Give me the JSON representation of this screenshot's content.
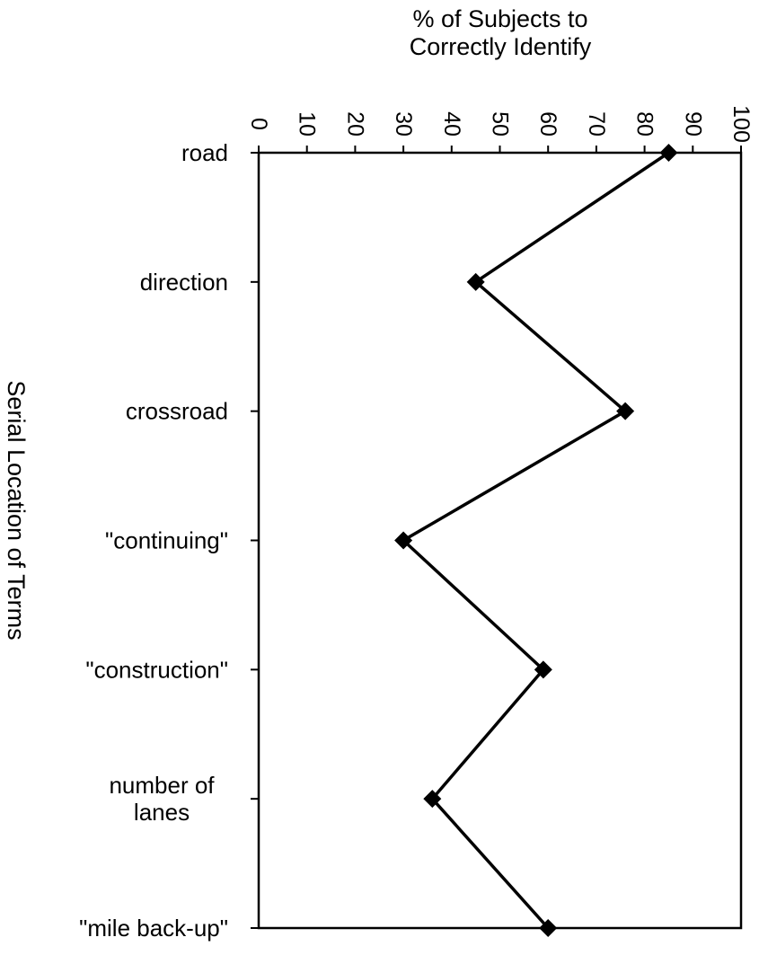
{
  "chart_data": {
    "type": "line",
    "orientation": "horizontal",
    "title": "",
    "xlabel": "% of Subjects to Correctly Identify",
    "xlabel_lines": [
      "% of Subjects to",
      "Correctly Identify"
    ],
    "ylabel": "Serial Location of Terms",
    "xlim": [
      0,
      100
    ],
    "x_ticks": [
      "0",
      "10",
      "20",
      "30",
      "40",
      "50",
      "60",
      "70",
      "80",
      "90",
      "100"
    ],
    "categories": [
      [
        "road"
      ],
      [
        "direction"
      ],
      [
        "crossroad"
      ],
      [
        "\"continuing\""
      ],
      [
        "\"construction\""
      ],
      [
        "number of",
        "lanes"
      ],
      [
        "\"mile back-up\""
      ]
    ],
    "series": [
      {
        "values": [
          85,
          45,
          76,
          30,
          59,
          36,
          60
        ]
      }
    ],
    "marker": "diamond",
    "grid": false,
    "legend": "none",
    "colors": {
      "line": "#000000",
      "axis": "#000000",
      "background": "#ffffff"
    }
  }
}
